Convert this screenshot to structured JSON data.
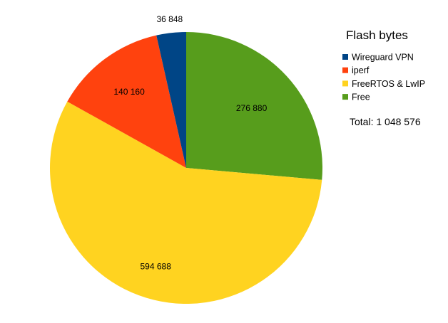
{
  "chart_data": {
    "type": "pie",
    "title": "",
    "legend_title": "Flash bytes",
    "legend_position": "right",
    "total_label": "Total: 1 048 576",
    "start": "top, clockwise",
    "slices": [
      {
        "name": "Free",
        "value": 276880,
        "label": "276 880",
        "color": "#579d1c"
      },
      {
        "name": "FreeRTOS & LwIP",
        "value": 594688,
        "label": "594 688",
        "color": "#ffd320"
      },
      {
        "name": "iperf",
        "value": 140160,
        "label": "140 160",
        "color": "#ff420e"
      },
      {
        "name": "Wireguard VPN",
        "value": 36848,
        "label": "36 848",
        "color": "#004586"
      }
    ],
    "legend_order": [
      "Wireguard VPN",
      "iperf",
      "FreeRTOS & LwIP",
      "Free"
    ]
  }
}
